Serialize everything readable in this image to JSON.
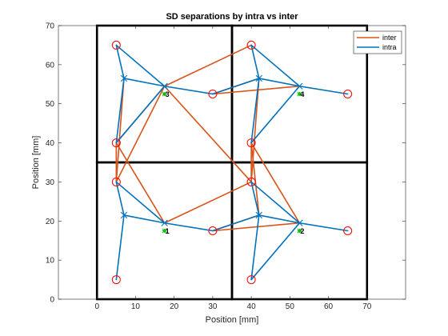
{
  "chart_data": {
    "type": "line",
    "title": "SD separations by intra vs inter",
    "xlabel": "Position [mm]",
    "ylabel": "Position [mm]",
    "xlim": [
      -10,
      80
    ],
    "ylim": [
      0,
      70
    ],
    "xticks": [
      0,
      10,
      20,
      30,
      40,
      50,
      60,
      70
    ],
    "yticks": [
      0,
      10,
      20,
      30,
      40,
      50,
      60,
      70
    ],
    "legend_position": "top-right",
    "colors": {
      "inter": "#d95319",
      "intra": "#0072bd",
      "source": "#ff0000",
      "plate": "#00c000"
    },
    "boxes": [
      {
        "x": [
          0,
          35
        ],
        "y": [
          35,
          70
        ]
      },
      {
        "x": [
          35,
          70
        ],
        "y": [
          35,
          70
        ]
      },
      {
        "x": [
          0,
          35
        ],
        "y": [
          0,
          35
        ]
      },
      {
        "x": [
          35,
          70
        ],
        "y": [
          0,
          35
        ]
      }
    ],
    "sources": [
      [
        5,
        65
      ],
      [
        5,
        40
      ],
      [
        30,
        52.5
      ],
      [
        40,
        65
      ],
      [
        40,
        40
      ],
      [
        65,
        52.5
      ],
      [
        5,
        30
      ],
      [
        5,
        5
      ],
      [
        30,
        17.5
      ],
      [
        40,
        30
      ],
      [
        40,
        5
      ],
      [
        65,
        17.5
      ]
    ],
    "detectors": [
      [
        7,
        56.5
      ],
      [
        17.5,
        54.5
      ],
      [
        42,
        56.5
      ],
      [
        52.5,
        54.5
      ],
      [
        7,
        21.5
      ],
      [
        17.5,
        19.5
      ],
      [
        42,
        21.5
      ],
      [
        52.5,
        19.5
      ]
    ],
    "plate_markers": [
      {
        "label": "3",
        "x": 17.5,
        "y": 52.5
      },
      {
        "label": "4",
        "x": 52.5,
        "y": 52.5
      },
      {
        "label": "1",
        "x": 17.5,
        "y": 17.5
      },
      {
        "label": "2",
        "x": 52.5,
        "y": 17.5
      }
    ],
    "series": [
      {
        "name": "inter",
        "segments": [
          [
            [
              5,
              40
            ],
            [
              17.5,
              54.5
            ]
          ],
          [
            [
              5,
              40
            ],
            [
              5,
              30
            ]
          ],
          [
            [
              5,
              40
            ],
            [
              17.5,
              19.5
            ]
          ],
          [
            [
              5,
              30
            ],
            [
              17.5,
              54.5
            ]
          ],
          [
            [
              5,
              30
            ],
            [
              7,
              56.5
            ]
          ],
          [
            [
              17.5,
              54.5
            ],
            [
              40,
              65
            ]
          ],
          [
            [
              17.5,
              54.5
            ],
            [
              40,
              30
            ]
          ],
          [
            [
              30,
              52.5
            ],
            [
              52.5,
              54.5
            ]
          ],
          [
            [
              30,
              52.5
            ],
            [
              42,
              56.5
            ]
          ],
          [
            [
              40,
              40
            ],
            [
              40,
              30
            ]
          ],
          [
            [
              40,
              40
            ],
            [
              52.5,
              19.5
            ]
          ],
          [
            [
              40,
              40
            ],
            [
              42,
              21.5
            ]
          ],
          [
            [
              40,
              30
            ],
            [
              42,
              56.5
            ]
          ],
          [
            [
              17.5,
              19.5
            ],
            [
              40,
              30
            ]
          ],
          [
            [
              30,
              17.5
            ],
            [
              52.5,
              19.5
            ]
          ],
          [
            [
              30,
              17.5
            ],
            [
              42,
              21.5
            ]
          ]
        ]
      },
      {
        "name": "intra",
        "segments": [
          [
            [
              5,
              65
            ],
            [
              7,
              56.5
            ]
          ],
          [
            [
              5,
              65
            ],
            [
              17.5,
              54.5
            ]
          ],
          [
            [
              7,
              56.5
            ],
            [
              17.5,
              54.5
            ]
          ],
          [
            [
              7,
              56.5
            ],
            [
              5,
              40
            ]
          ],
          [
            [
              5,
              40
            ],
            [
              17.5,
              54.5
            ]
          ],
          [
            [
              17.5,
              54.5
            ],
            [
              30,
              52.5
            ]
          ],
          [
            [
              40,
              65
            ],
            [
              42,
              56.5
            ]
          ],
          [
            [
              40,
              65
            ],
            [
              52.5,
              54.5
            ]
          ],
          [
            [
              42,
              56.5
            ],
            [
              52.5,
              54.5
            ]
          ],
          [
            [
              42,
              56.5
            ],
            [
              40,
              40
            ]
          ],
          [
            [
              30,
              52.5
            ],
            [
              42,
              56.5
            ]
          ],
          [
            [
              40,
              40
            ],
            [
              52.5,
              54.5
            ]
          ],
          [
            [
              52.5,
              54.5
            ],
            [
              65,
              52.5
            ]
          ],
          [
            [
              5,
              30
            ],
            [
              7,
              21.5
            ]
          ],
          [
            [
              5,
              30
            ],
            [
              17.5,
              19.5
            ]
          ],
          [
            [
              7,
              21.5
            ],
            [
              17.5,
              19.5
            ]
          ],
          [
            [
              7,
              21.5
            ],
            [
              5,
              5
            ]
          ],
          [
            [
              17.5,
              19.5
            ],
            [
              30,
              17.5
            ]
          ],
          [
            [
              40,
              30
            ],
            [
              42,
              21.5
            ]
          ],
          [
            [
              40,
              30
            ],
            [
              52.5,
              19.5
            ]
          ],
          [
            [
              42,
              21.5
            ],
            [
              52.5,
              19.5
            ]
          ],
          [
            [
              42,
              21.5
            ],
            [
              40,
              5
            ]
          ],
          [
            [
              30,
              17.5
            ],
            [
              42,
              21.5
            ]
          ],
          [
            [
              40,
              5
            ],
            [
              52.5,
              19.5
            ]
          ],
          [
            [
              52.5,
              19.5
            ],
            [
              65,
              17.5
            ]
          ]
        ]
      }
    ]
  }
}
